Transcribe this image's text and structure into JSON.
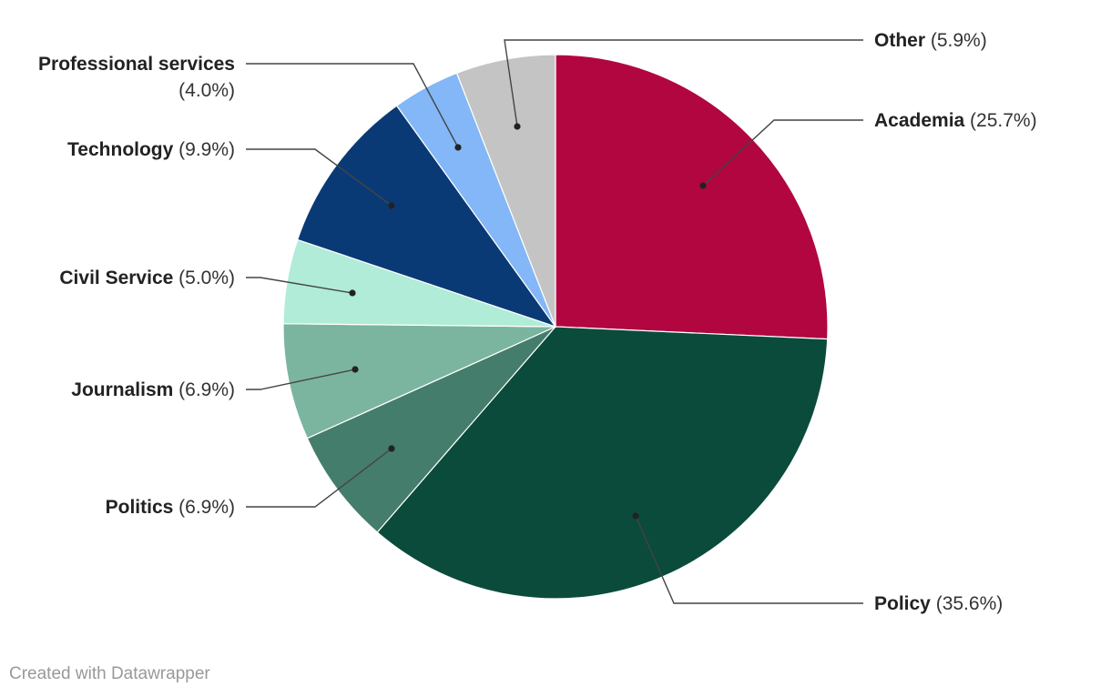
{
  "chart_data": {
    "type": "pie",
    "start_angle": "top",
    "direction": "clockwise",
    "slices": [
      {
        "label": "Academia",
        "value": 25.7,
        "display": "(25.7%)",
        "color": "#b10640"
      },
      {
        "label": "Policy",
        "value": 35.6,
        "display": "(35.6%)",
        "color": "#0b4b3b"
      },
      {
        "label": "Politics",
        "value": 6.9,
        "display": "(6.9%)",
        "color": "#447d6b"
      },
      {
        "label": "Journalism",
        "value": 6.9,
        "display": "(6.9%)",
        "color": "#7bb5a0"
      },
      {
        "label": "Civil Service",
        "value": 5.0,
        "display": "(5.0%)",
        "color": "#b0ecd7"
      },
      {
        "label": "Technology",
        "value": 9.9,
        "display": "(9.9%)",
        "color": "#0a3a75"
      },
      {
        "label": "Professional services",
        "value": 4.0,
        "display": "(4.0%)",
        "color": "#83b7f7"
      },
      {
        "label": "Other",
        "value": 5.9,
        "display": "(5.9%)",
        "color": "#c4c4c4"
      }
    ]
  },
  "footer": {
    "credit": "Created with Datawrapper"
  }
}
